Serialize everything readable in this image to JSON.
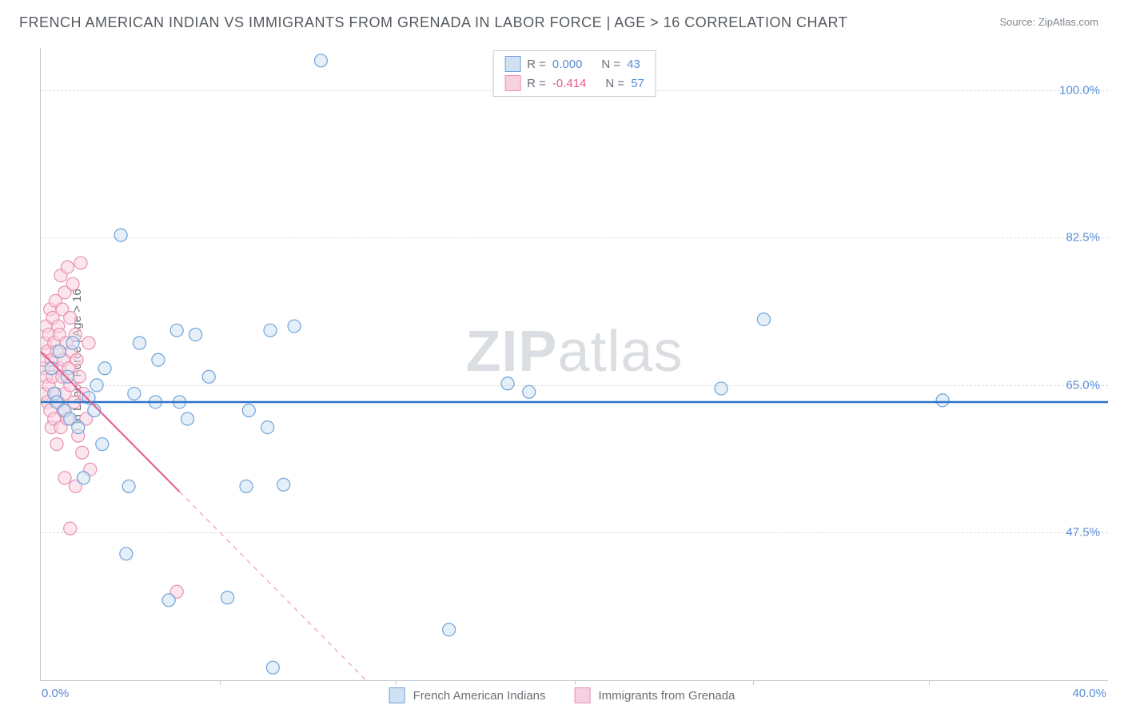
{
  "title": "FRENCH AMERICAN INDIAN VS IMMIGRANTS FROM GRENADA IN LABOR FORCE | AGE > 16 CORRELATION CHART",
  "source_prefix": "Source: ",
  "source": "ZipAtlas.com",
  "y_axis_label": "In Labor Force | Age > 16",
  "watermark_bold": "ZIP",
  "watermark_rest": "atlas",
  "chart": {
    "type": "scatter-with-regression",
    "background_color": "#ffffff",
    "grid_color": "#d8dce0",
    "axis_color": "#c3c8ce",
    "xlim": [
      0,
      40
    ],
    "ylim": [
      30,
      105
    ],
    "x_ticks": [
      0,
      40
    ],
    "x_tick_labels": [
      "0.0%",
      "40.0%"
    ],
    "x_minor_ticks": [
      6.7,
      13.3,
      20,
      26.7,
      33.3
    ],
    "y_ticks": [
      47.5,
      65.0,
      82.5,
      100.0
    ],
    "y_tick_labels": [
      "47.5%",
      "65.0%",
      "82.5%",
      "100.0%"
    ],
    "tick_fontsize": 15,
    "tick_color": "#5a8fd6",
    "marker_radius": 8,
    "marker_stroke_width": 1.2,
    "series": [
      {
        "name": "French American Indians",
        "fill": "#cfe1f3",
        "stroke": "#6fa3d9",
        "fill_opacity": 0.55,
        "r_value": "0.000",
        "n_value": "43",
        "regression": {
          "y_intercept": 63.0,
          "slope": 0.0,
          "color": "#2d72c9",
          "width": 2.5,
          "solid_to_x": 40
        },
        "points": [
          [
            0.4,
            67
          ],
          [
            0.5,
            64
          ],
          [
            0.6,
            63
          ],
          [
            0.7,
            69
          ],
          [
            0.9,
            62
          ],
          [
            1.0,
            66
          ],
          [
            1.1,
            61
          ],
          [
            1.2,
            70
          ],
          [
            1.4,
            60
          ],
          [
            1.6,
            54
          ],
          [
            1.8,
            63.5
          ],
          [
            2.0,
            62
          ],
          [
            2.1,
            65
          ],
          [
            2.3,
            58
          ],
          [
            2.4,
            67
          ],
          [
            3.0,
            82.8
          ],
          [
            3.2,
            45
          ],
          [
            3.3,
            53
          ],
          [
            3.5,
            64
          ],
          [
            3.7,
            70
          ],
          [
            4.3,
            63
          ],
          [
            4.4,
            68
          ],
          [
            4.8,
            39.5
          ],
          [
            5.1,
            71.5
          ],
          [
            5.2,
            63
          ],
          [
            5.5,
            61
          ],
          [
            5.8,
            71
          ],
          [
            6.3,
            66
          ],
          [
            7.0,
            39.8
          ],
          [
            7.7,
            53
          ],
          [
            7.8,
            62
          ],
          [
            8.5,
            60
          ],
          [
            8.6,
            71.5
          ],
          [
            8.7,
            31.5
          ],
          [
            9.1,
            53.2
          ],
          [
            9.5,
            72
          ],
          [
            10.5,
            103.5
          ],
          [
            15.3,
            36
          ],
          [
            17.5,
            65.2
          ],
          [
            18.3,
            64.2
          ],
          [
            25.5,
            64.6
          ],
          [
            27.1,
            72.8
          ],
          [
            33.8,
            63.2
          ]
        ]
      },
      {
        "name": "Immigrants from Grenada",
        "fill": "#f7d1df",
        "stroke": "#e991b4",
        "fill_opacity": 0.55,
        "r_value": "-0.414",
        "n_value": "57",
        "regression": {
          "y_intercept": 69.0,
          "slope": -3.2,
          "color": "#e45a8e",
          "width": 2.0,
          "solid_to_x": 5.2
        },
        "points": [
          [
            0.1,
            67
          ],
          [
            0.1,
            68
          ],
          [
            0.15,
            70
          ],
          [
            0.15,
            64
          ],
          [
            0.2,
            72
          ],
          [
            0.2,
            66
          ],
          [
            0.25,
            69
          ],
          [
            0.25,
            63
          ],
          [
            0.3,
            71
          ],
          [
            0.3,
            65
          ],
          [
            0.35,
            74
          ],
          [
            0.35,
            62
          ],
          [
            0.4,
            68
          ],
          [
            0.4,
            60
          ],
          [
            0.45,
            73
          ],
          [
            0.45,
            66
          ],
          [
            0.5,
            70
          ],
          [
            0.5,
            61
          ],
          [
            0.55,
            75
          ],
          [
            0.55,
            64
          ],
          [
            0.6,
            69
          ],
          [
            0.6,
            58
          ],
          [
            0.65,
            72
          ],
          [
            0.65,
            63
          ],
          [
            0.7,
            67
          ],
          [
            0.7,
            71
          ],
          [
            0.75,
            78
          ],
          [
            0.75,
            60
          ],
          [
            0.8,
            66
          ],
          [
            0.8,
            74
          ],
          [
            0.85,
            68
          ],
          [
            0.85,
            62
          ],
          [
            0.9,
            76
          ],
          [
            0.9,
            64
          ],
          [
            0.95,
            70
          ],
          [
            1.0,
            79
          ],
          [
            1.0,
            61
          ],
          [
            1.05,
            67
          ],
          [
            1.1,
            73
          ],
          [
            1.1,
            65
          ],
          [
            1.15,
            69
          ],
          [
            1.2,
            77
          ],
          [
            1.25,
            63
          ],
          [
            1.3,
            71
          ],
          [
            1.35,
            68
          ],
          [
            1.4,
            59
          ],
          [
            1.45,
            66
          ],
          [
            1.5,
            79.5
          ],
          [
            1.55,
            57
          ],
          [
            1.6,
            64
          ],
          [
            1.7,
            61
          ],
          [
            1.8,
            70
          ],
          [
            1.85,
            55
          ],
          [
            1.1,
            48
          ],
          [
            1.3,
            53
          ],
          [
            0.9,
            54
          ],
          [
            5.1,
            40.5
          ]
        ]
      }
    ]
  },
  "legend_top": {
    "r_label": "R =",
    "n_label": "N ="
  },
  "legend_bottom": {
    "items": [
      "French American Indians",
      "Immigrants from Grenada"
    ]
  }
}
